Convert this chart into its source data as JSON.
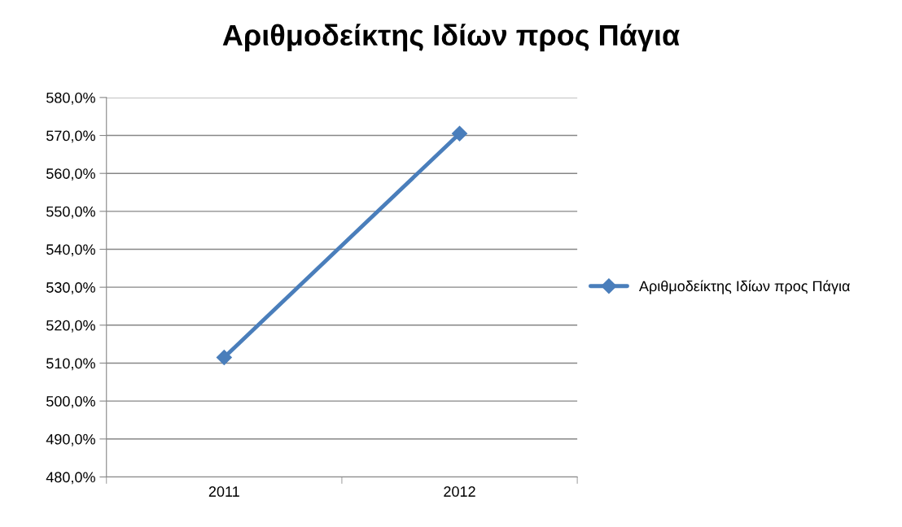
{
  "chart_data": {
    "type": "line",
    "title": "Αριθμοδείκτης Ιδίων προς Πάγια",
    "categories": [
      "2011",
      "2012"
    ],
    "series": [
      {
        "name": "Αριθμοδείκτης Ιδίων προς Πάγια",
        "color": "#4a7ebb",
        "values": [
          511.5,
          570.5
        ]
      }
    ],
    "ylim": [
      480,
      580
    ],
    "yticks": [
      {
        "value": 480,
        "label": "480,0%"
      },
      {
        "value": 490,
        "label": "490,0%"
      },
      {
        "value": 500,
        "label": "500,0%"
      },
      {
        "value": 510,
        "label": "510,0%"
      },
      {
        "value": 520,
        "label": "520,0%"
      },
      {
        "value": 530,
        "label": "530,0%"
      },
      {
        "value": 540,
        "label": "540,0%"
      },
      {
        "value": 550,
        "label": "550,0%"
      },
      {
        "value": 560,
        "label": "560,0%"
      },
      {
        "value": 570,
        "label": "570,0%"
      },
      {
        "value": 580,
        "label": "580,0%"
      }
    ],
    "grid": "y",
    "legend": "right",
    "marker": "diamond",
    "line_style": "solid"
  }
}
